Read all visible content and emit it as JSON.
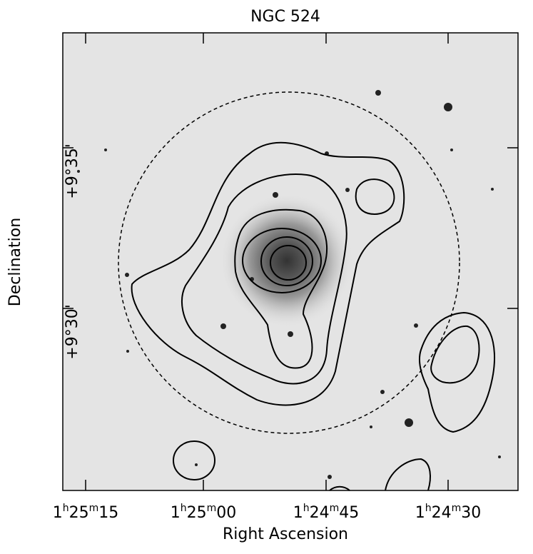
{
  "figure": {
    "title": "NGC 524",
    "x_axis": {
      "label": "Right Ascension",
      "ticks": [
        [
          "1",
          "h",
          "25",
          "m",
          "15"
        ],
        [
          "1",
          "h",
          "25",
          "m",
          "00"
        ],
        [
          "1",
          "h",
          "24",
          "m",
          "45"
        ],
        [
          "1",
          "h",
          "24",
          "m",
          "30"
        ]
      ]
    },
    "y_axis": {
      "label": "Declination",
      "ticks": [
        "+9°35'",
        "+9°30'"
      ]
    }
  }
}
